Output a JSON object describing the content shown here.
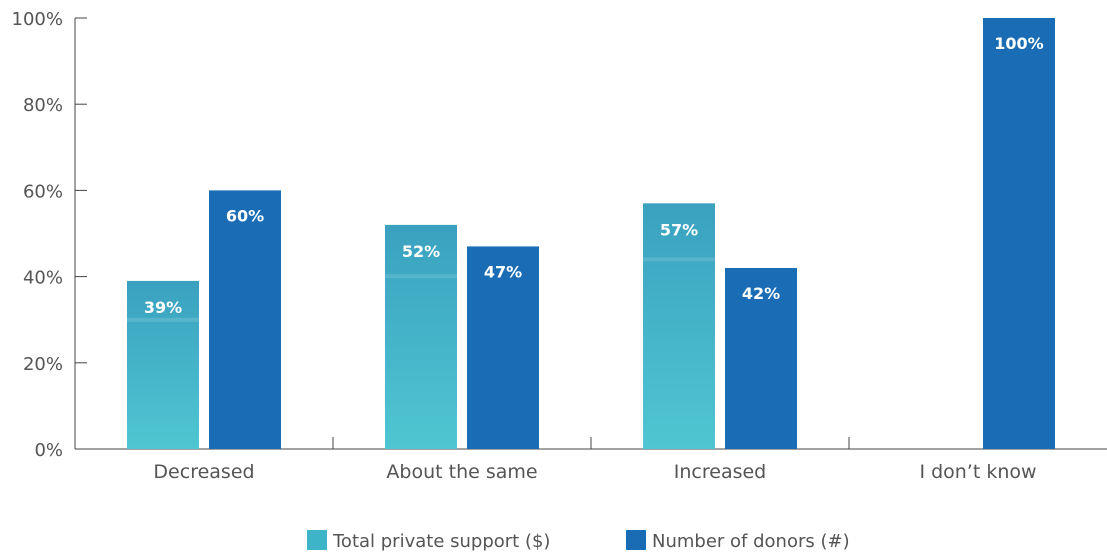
{
  "chart_data": {
    "type": "bar",
    "categories": [
      "Decreased",
      "About the same",
      "Increased",
      "I don’t know"
    ],
    "series": [
      {
        "name": "Total private support ($)",
        "values": [
          39,
          52,
          57,
          null
        ],
        "labels": [
          "39%",
          "52%",
          "57%",
          ""
        ],
        "color": "#3db4c8"
      },
      {
        "name": "Number of donors (#)",
        "values": [
          60,
          47,
          42,
          100
        ],
        "labels": [
          "60%",
          "47%",
          "42%",
          "100%"
        ],
        "color": "#1a6db5"
      }
    ],
    "y_ticks": [
      "0%",
      "20%",
      "40%",
      "60%",
      "80%",
      "100%"
    ],
    "ylim": [
      0,
      100
    ],
    "grid": false,
    "legend_position": "bottom-center"
  }
}
